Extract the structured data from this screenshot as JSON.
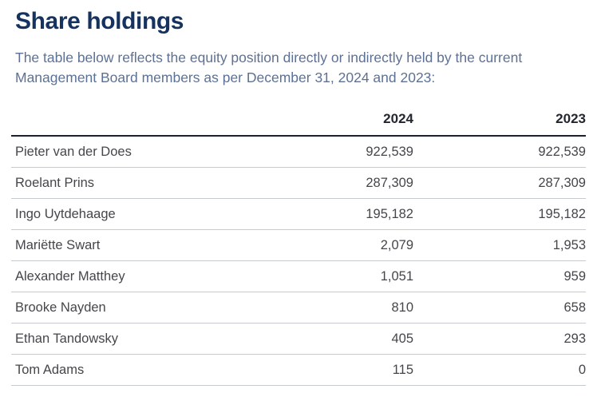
{
  "colors": {
    "title": "#16325f",
    "intro_text": "#5d7195",
    "header_text": "#23262e",
    "table_text": "#45464b",
    "header_rule": "#1c2030",
    "row_divider": "#c7cad0",
    "background": "#ffffff"
  },
  "header": {
    "title": "Share holdings",
    "intro": "The table below reflects the equity position directly or indirectly held by the current Management Board members as per December 31, 2024 and 2023:"
  },
  "table": {
    "name_header": "",
    "columns": [
      "2024",
      "2023"
    ],
    "rows": [
      {
        "name": "Pieter van der Does",
        "values": [
          "922,539",
          "922,539"
        ]
      },
      {
        "name": "Roelant Prins",
        "values": [
          "287,309",
          "287,309"
        ]
      },
      {
        "name": "Ingo Uytdehaage",
        "values": [
          "195,182",
          "195,182"
        ]
      },
      {
        "name": "Mariëtte Swart",
        "values": [
          "2,079",
          "1,953"
        ]
      },
      {
        "name": "Alexander Matthey",
        "values": [
          "1,051",
          "959"
        ]
      },
      {
        "name": "Brooke Nayden",
        "values": [
          "810",
          "658"
        ]
      },
      {
        "name": "Ethan Tandowsky",
        "values": [
          "405",
          "293"
        ]
      },
      {
        "name": "Tom Adams",
        "values": [
          "115",
          "0"
        ]
      }
    ]
  }
}
